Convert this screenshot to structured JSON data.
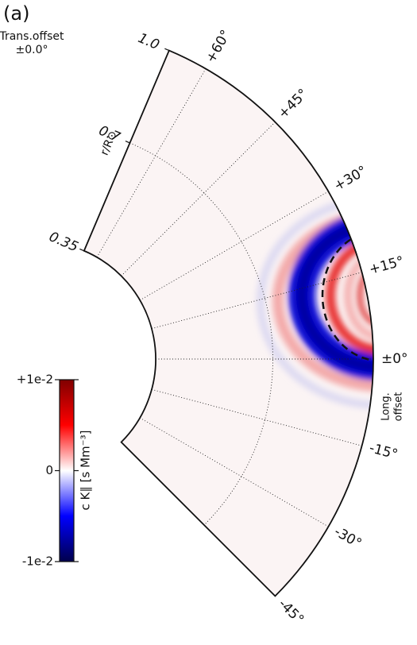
{
  "chart_data": {
    "type": "polar-heatmap",
    "panel_label": "(a)",
    "annotations": [
      "Trans.offset",
      "±0.0°",
      "Long.",
      "offset"
    ],
    "r_label": "r/R⊙",
    "rlim": [
      0.35,
      1.0
    ],
    "rticks": [
      0.35,
      0.7,
      {
        "value": 1,
        "label": "1.0"
      }
    ],
    "thetalim": [
      -45,
      67
    ],
    "thetaticks": [
      {
        "value": -45,
        "label": "-45°"
      },
      {
        "value": -30,
        "label": "-30°"
      },
      {
        "value": -15,
        "label": "-15°"
      },
      {
        "value": 0,
        "label": "±0°"
      },
      {
        "value": 15,
        "label": "+15°"
      },
      {
        "value": 30,
        "label": "+30°"
      },
      {
        "value": 45,
        "label": "+45°"
      },
      {
        "value": 60,
        "label": "+60°"
      }
    ],
    "grid": true,
    "colorbar": {
      "label": "c K∥ [s Mm⁻³]",
      "clim": [
        -0.01,
        0.01
      ],
      "ticks": [
        {
          "value": -0.01,
          "label": "-1e-2"
        },
        0,
        {
          "value": 0.01,
          "label": "+1e-2"
        }
      ],
      "colors": [
        "#00004c",
        "#0000ff",
        "#ffffff",
        "#ff0000",
        "#800000"
      ]
    }
  }
}
